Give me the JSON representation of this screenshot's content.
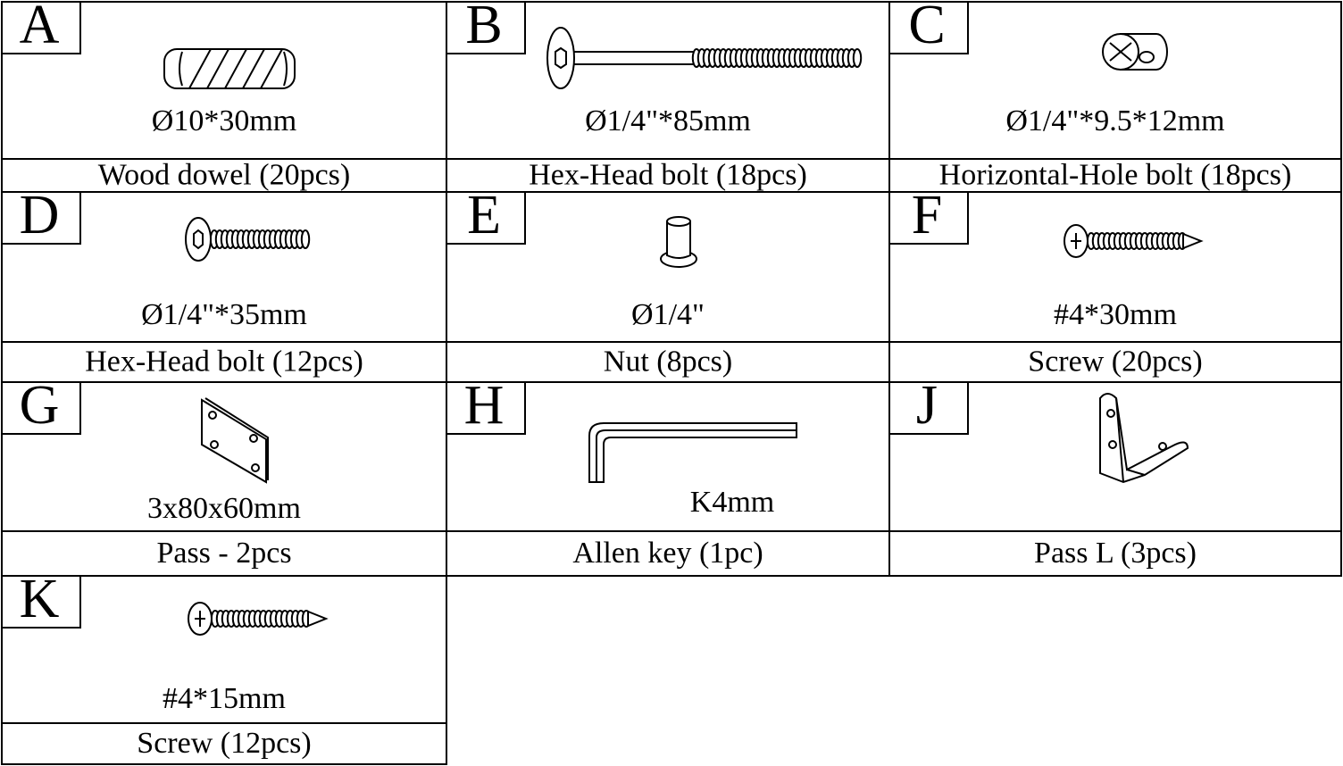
{
  "parts": [
    {
      "letter": "A",
      "size": "Ø10*30mm",
      "name": "Wood dowel (20pcs)"
    },
    {
      "letter": "B",
      "size": "Ø1/4\"*85mm",
      "name": "Hex-Head bolt (18pcs)"
    },
    {
      "letter": "C",
      "size": "Ø1/4\"*9.5*12mm",
      "name": "Horizontal-Hole bolt (18pcs)"
    },
    {
      "letter": "D",
      "size": "Ø1/4\"*35mm",
      "name": "Hex-Head bolt (12pcs)"
    },
    {
      "letter": "E",
      "size": "Ø1/4\"",
      "name": "Nut (8pcs)"
    },
    {
      "letter": "F",
      "size": "#4*30mm",
      "name": "Screw (20pcs)"
    },
    {
      "letter": "G",
      "size": "3x80x60mm",
      "name": "Pass - 2pcs"
    },
    {
      "letter": "H",
      "size": "K4mm",
      "name": "Allen key (1pc)"
    },
    {
      "letter": "J",
      "size": "",
      "name": "Pass L (3pcs)"
    },
    {
      "letter": "K",
      "size": "#4*15mm",
      "name": "Screw (12pcs)"
    }
  ]
}
